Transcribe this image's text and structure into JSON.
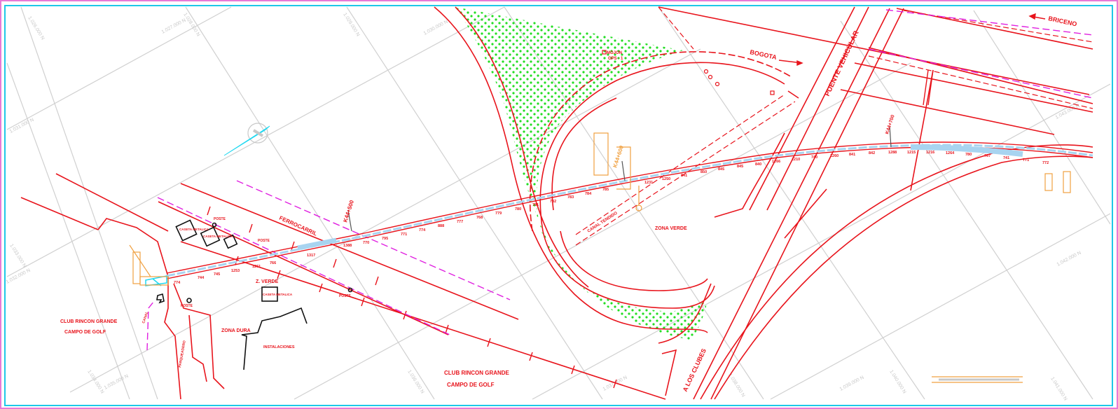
{
  "colors": {
    "background": "#ffffff",
    "border_outer": "#e879d6",
    "border_inner": "#1ec8e8",
    "road": "#e8141c",
    "grid": "#cfcfcf",
    "green_hatch": "#22dd22",
    "magenta": "#e020e0",
    "orange": "#f0a040",
    "cyan": "#20d8f0",
    "pipeline": "#a8d4f0"
  },
  "labels": {
    "bogota": "BOGOTA",
    "briceno": "BRICENO",
    "puente_vehicular": "PUENTE VEHICULAR",
    "ferrocarril": "FERROCARRIL",
    "zona_verde": "ZONA VERDE",
    "z_verde": "Z. VERDE",
    "zona_dura": "ZONA DURA",
    "club_left_1": "CLUB RINCON GRANDE",
    "club_left_2": "CAMPO DE GOLF",
    "club_bottom_1": "CLUB RINCON GRANDE",
    "club_bottom_2": "CAMPO DE GOLF",
    "a_los_cristos": "A LOS CLUBES",
    "k_left": "K44+500",
    "k_mid": "K44+600",
    "k_right": "K44+700",
    "mojon_1": "MOJON",
    "mojon_2": "GPS - 1",
    "canal": "CANAL TENDIDO",
    "instalaciones": "INSTALACIONES",
    "poste_1": "POSTE",
    "poste_2": "POSTE",
    "poste_3": "POSTE",
    "poste_4": "POSTE",
    "caseta_1": "CASETA METALICA",
    "caseta_2": "CASETA METALICA",
    "caseta_3": "CASETA METALICA",
    "canal_left": "CANAL",
    "parqueadero": "PARQUEADERO"
  },
  "grid_labels": [
    "1.026.000 N",
    "1.027.000 N",
    "1.028.000 N",
    "1.029.000 N",
    "1.030.000 N",
    "1.031.000 N",
    "1.032.000 N",
    "1.033.000 N",
    "1.034.000 N",
    "1.035.000 N",
    "1.036.000 N",
    "1.037.000 N",
    "1.038.000 N",
    "1.039.000 N",
    "1.040.000 N",
    "1.041.000 N",
    "1.042.000 N",
    "1.043.000 N"
  ],
  "elevations_lower": [
    "774",
    "744",
    "745",
    "1253",
    "1261",
    "766",
    "1317",
    "1388",
    "770",
    "795",
    "771",
    "774",
    "888",
    "777",
    "768",
    "779",
    "780",
    "781",
    "782",
    "783",
    "784",
    "785"
  ],
  "elevations_upper": [
    "1231",
    "1250",
    "841",
    "850",
    "845",
    "845",
    "840",
    "1266",
    "1210",
    "740",
    "1260",
    "841",
    "842",
    "1288",
    "1215",
    "1216",
    "1264",
    "780",
    "767",
    "741",
    "771",
    "772"
  ]
}
